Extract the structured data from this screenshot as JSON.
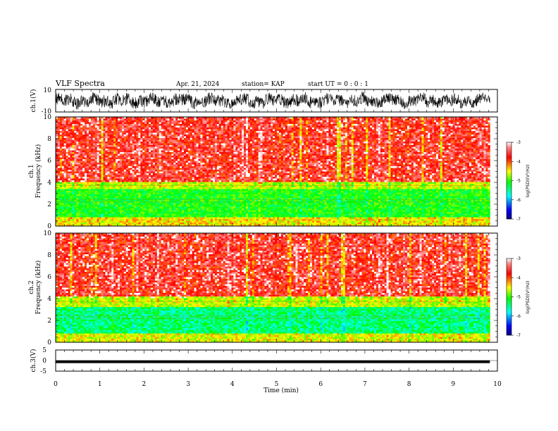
{
  "header": {
    "title": "VLF Spectra",
    "date": "Apr. 21, 2024",
    "station": "station= KAP",
    "start": "start  UT =   0 : 0  : 1"
  },
  "chart_data": [
    {
      "type": "line",
      "id": "ch1_waveform",
      "ylabel": "ch.1(V)",
      "ylim": [
        -10,
        10
      ],
      "y_ticks": [
        "10",
        "-10"
      ],
      "x_range": [
        0,
        9.83
      ],
      "series": [
        {
          "description_values": "noisy voltage trace, approx range",
          "values": [
            -8,
            9
          ]
        }
      ]
    },
    {
      "type": "heatmap",
      "id": "ch1_spectrogram",
      "ylabel_line1": "ch.1",
      "ylabel_line2": "Frequency (kHz)",
      "ylim": [
        0,
        10
      ],
      "y_ticks": [
        "0",
        "2",
        "4",
        "6",
        "8",
        "10"
      ],
      "x_range": [
        0,
        9.83
      ],
      "bands": [
        {
          "from": 0,
          "to": 0.8,
          "log_psd": -4.3
        },
        {
          "from": 0.8,
          "to": 3.4,
          "log_psd": -5.0
        },
        {
          "from": 3.4,
          "to": 4.0,
          "log_psd": -4.5
        },
        {
          "from": 4.0,
          "to": 10,
          "log_psd": -3.6
        }
      ],
      "colorbar": {
        "label": "log(PSD)(V²/Hz)",
        "range": [
          -7,
          -3
        ],
        "ticks": [
          "-3",
          "-4",
          "-5",
          "-6",
          "-7"
        ]
      }
    },
    {
      "type": "heatmap",
      "id": "ch2_spectrogram",
      "ylabel_line1": "ch.2",
      "ylabel_line2": "Frequency (kHz)",
      "ylim": [
        0,
        10
      ],
      "y_ticks": [
        "0",
        "2",
        "4",
        "6",
        "8",
        "10"
      ],
      "x_range": [
        0,
        9.83
      ],
      "bands": [
        {
          "from": 0,
          "to": 0.8,
          "log_psd": -4.4
        },
        {
          "from": 0.8,
          "to": 3.3,
          "log_psd": -5.3
        },
        {
          "from": 3.3,
          "to": 4.2,
          "log_psd": -4.5
        },
        {
          "from": 4.2,
          "to": 10,
          "log_psd": -3.6
        }
      ],
      "colorbar": {
        "label": "log(PSD)(V²/Hz)",
        "range": [
          -7,
          -3
        ],
        "ticks": [
          "-3",
          "-4",
          "-5",
          "-6",
          "-7"
        ]
      }
    },
    {
      "type": "line",
      "id": "ch3_waveform",
      "ylabel": "ch.3(V)",
      "ylim": [
        -5,
        5
      ],
      "y_ticks": [
        "5",
        "0",
        "-5"
      ],
      "x_range": [
        0,
        9.83
      ],
      "series": [
        {
          "description_values": "dense band around -0.5 V",
          "values": [
            -1.2,
            0.1
          ]
        }
      ]
    }
  ],
  "xaxis": {
    "label": "Time  (min)",
    "range": [
      0,
      10
    ],
    "ticks": [
      "0",
      "1",
      "2",
      "3",
      "4",
      "5",
      "6",
      "7",
      "8",
      "9",
      "10"
    ]
  },
  "colors": {
    "colormap": [
      "#000080",
      "#0000ff",
      "#00ffff",
      "#00ff00",
      "#ffff00",
      "#ff0000",
      "#ffffff"
    ]
  }
}
